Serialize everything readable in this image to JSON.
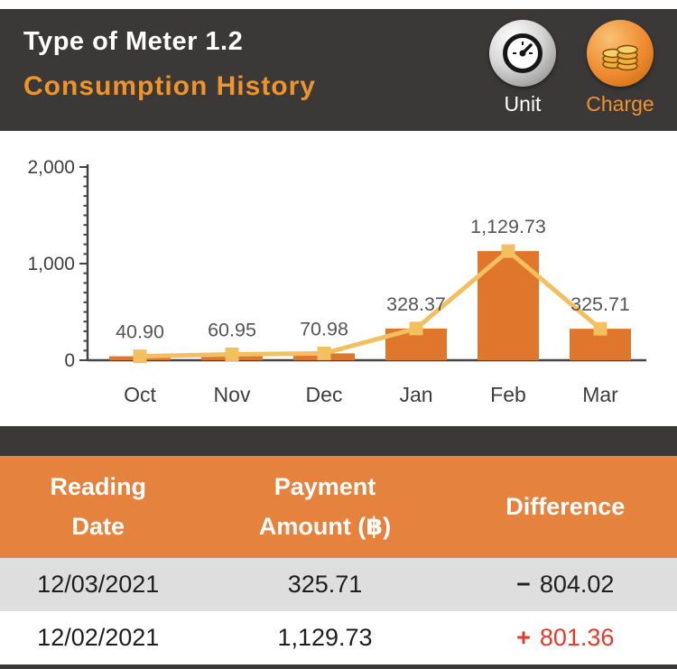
{
  "header": {
    "title": "Type of Meter 1.2",
    "subtitle": "Consumption History",
    "buttons": [
      {
        "label": "Unit",
        "icon": "gauge-icon",
        "active": false
      },
      {
        "label": "Charge",
        "icon": "coins-icon",
        "active": true
      }
    ],
    "accent_color": "#f0932c",
    "background_color": "#3a3937"
  },
  "chart_data": {
    "type": "bar",
    "overlay": "line",
    "categories": [
      "Oct",
      "Nov",
      "Dec",
      "Jan",
      "Feb",
      "Mar"
    ],
    "values": [
      40.9,
      60.95,
      70.98,
      328.37,
      1129.73,
      325.71
    ],
    "value_labels": [
      "40.90",
      "60.95",
      "70.98",
      "328.37",
      "1,129.73",
      "325.71"
    ],
    "y_ticks": [
      0,
      1000,
      2000
    ],
    "y_tick_labels": [
      "0",
      "1,000",
      "2,000"
    ],
    "ylim": [
      0,
      2000
    ],
    "minor_tick_step": 100,
    "grid": "off",
    "legend": "none",
    "bar_color": "#e0752c",
    "line_color": "#f2c05e",
    "label_color": "#555555",
    "axis_color": "#444444"
  },
  "table": {
    "headers": [
      {
        "line1": "Reading",
        "line2": "Date"
      },
      {
        "line1": "Payment",
        "line2": "Amount (฿)"
      },
      {
        "line1": "Difference",
        "line2": ""
      }
    ],
    "rows": [
      {
        "date": "12/03/2021",
        "amount": "325.71",
        "diff_sign": "−",
        "diff_value": "804.02",
        "diff_color": "#1f1f1f"
      },
      {
        "date": "12/02/2021",
        "amount": "1,129.73",
        "diff_sign": "+",
        "diff_value": "801.36",
        "diff_color": "#e5392c"
      }
    ],
    "header_bg": "#e5823e",
    "alt_row_bg": "#dedede"
  }
}
